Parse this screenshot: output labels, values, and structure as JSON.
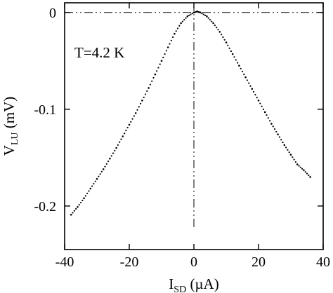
{
  "chart_data": {
    "type": "scatter",
    "title": "",
    "xlabel": {
      "main": "I",
      "sub": "SD",
      "unit": " (µA)"
    },
    "ylabel": {
      "main": "V",
      "sub": "LU",
      "unit": " (mV)"
    },
    "xlim": [
      -40,
      40
    ],
    "ylim": [
      -0.245,
      0.01
    ],
    "xticks": [
      -40,
      -20,
      0,
      20,
      40
    ],
    "xtick_labels": [
      "-40",
      "-20",
      "0",
      "20",
      "40"
    ],
    "yticks": [
      0,
      -0.1,
      -0.2
    ],
    "ytick_labels": [
      "0",
      "-0.1",
      "-0.2"
    ],
    "grid": false,
    "annotation": "T=4.2 K",
    "reference_lines": {
      "horizontal_y": 0,
      "vertical_x": 0,
      "style": "dash-dot"
    },
    "series": [
      {
        "marker": "dot",
        "color": "#000000",
        "x": [
          -38,
          -36,
          -34,
          -32,
          -30,
          -28,
          -26,
          -24,
          -22,
          -20,
          -18,
          -16,
          -14,
          -12,
          -10,
          -8,
          -6,
          -4,
          -2,
          0,
          1,
          2,
          4,
          6,
          8,
          10,
          12,
          14,
          16,
          18,
          20,
          22,
          24,
          26,
          28,
          30,
          32,
          34,
          36
        ],
        "y": [
          -0.209,
          -0.201,
          -0.192,
          -0.182,
          -0.172,
          -0.162,
          -0.151,
          -0.14,
          -0.128,
          -0.116,
          -0.104,
          -0.091,
          -0.078,
          -0.064,
          -0.05,
          -0.036,
          -0.022,
          -0.011,
          -0.004,
          0.0,
          0.001,
          0.0,
          -0.004,
          -0.011,
          -0.02,
          -0.031,
          -0.043,
          -0.055,
          -0.067,
          -0.079,
          -0.091,
          -0.103,
          -0.115,
          -0.126,
          -0.137,
          -0.147,
          -0.157,
          -0.163,
          -0.17
        ]
      }
    ]
  }
}
